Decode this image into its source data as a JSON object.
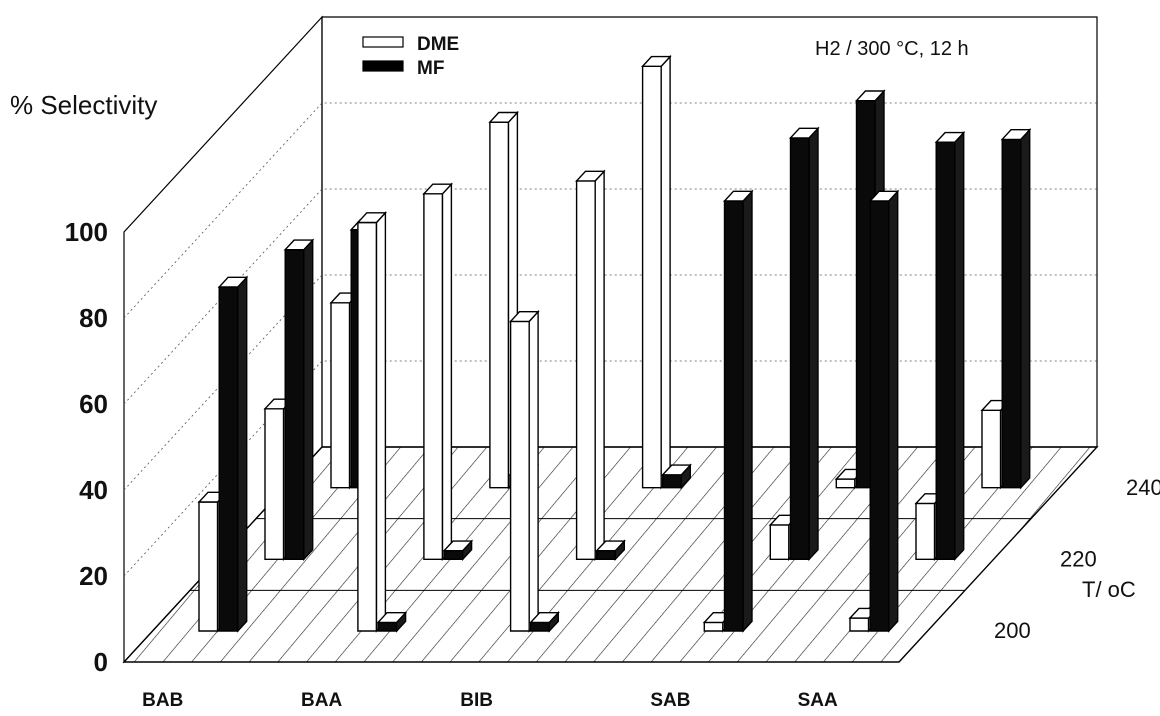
{
  "chart_data": {
    "type": "bar",
    "title": "",
    "annotation": "H2 / 300 °C, 12 h",
    "ylabel": "% Selectivity",
    "zlabel": "T/ oC",
    "ylim": [
      0,
      100
    ],
    "yticks": [
      "0",
      "20",
      "40",
      "60",
      "80",
      "100"
    ],
    "categories": [
      "BAB",
      "BAA",
      "BIB",
      "SAB",
      "SAA"
    ],
    "temperatures": [
      "200",
      "220",
      "240"
    ],
    "legend_position": "top-left",
    "grid": true,
    "series": [
      {
        "name": "DME",
        "color": "#ffffff",
        "values": {
          "200": [
            30,
            95,
            72,
            2,
            3
          ],
          "220": [
            35,
            85,
            88,
            8,
            13
          ],
          "240": [
            43,
            85,
            98,
            2,
            18
          ]
        }
      },
      {
        "name": "MF",
        "color": "#000000",
        "values": {
          "200": [
            80,
            2,
            2,
            100,
            100
          ],
          "220": [
            72,
            2,
            2,
            98,
            97
          ],
          "240": [
            60,
            3,
            3,
            90,
            81
          ]
        }
      }
    ]
  }
}
